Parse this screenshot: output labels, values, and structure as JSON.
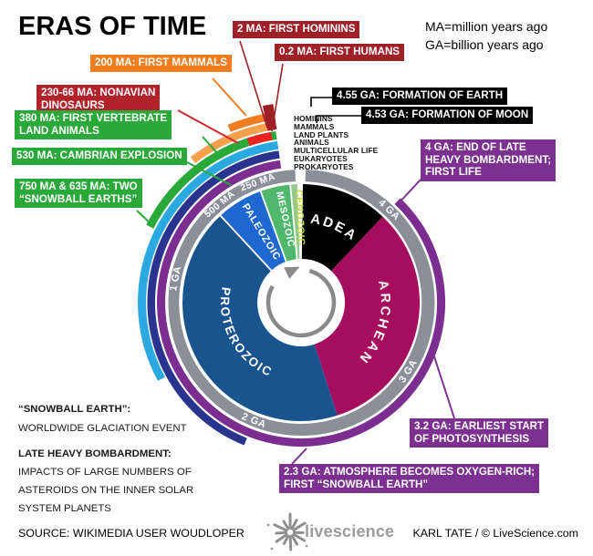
{
  "title": "ERAS OF TIME",
  "legend": {
    "line1": "MA=million years ago",
    "line2": "GA=billion years ago"
  },
  "callouts": {
    "hominins": {
      "lines": [
        "2 MA: FIRST HOMININS"
      ],
      "color": "darkred"
    },
    "humans": {
      "lines": [
        "0.2 MA: FIRST HUMANS"
      ],
      "color": "darkred"
    },
    "mammals": {
      "lines": [
        "200 MA: FIRST MAMMALS"
      ],
      "color": "orange"
    },
    "dinosaurs": {
      "lines": [
        "230-66 MA: NONAVIAN",
        "DINOSAURS"
      ],
      "color": "red"
    },
    "vertebrates": {
      "lines": [
        "380 MA: FIRST VERTEBRATE",
        "LAND ANIMALS"
      ],
      "color": "green"
    },
    "cambrian": {
      "lines": [
        "530 MA: CAMBRIAN EXPLOSION"
      ],
      "color": "green"
    },
    "snowball750": {
      "lines": [
        "750 MA & 635 MA: TWO",
        "“SNOWBALL EARTHS”"
      ],
      "color": "green"
    },
    "earth": {
      "lines": [
        "4.55 GA: FORMATION OF EARTH"
      ],
      "color": "black"
    },
    "moon": {
      "lines": [
        "4.53 GA: FORMATION OF MOON"
      ],
      "color": "black"
    },
    "bombardment": {
      "lines": [
        "4 GA: END OF LATE",
        "HEAVY BOMBARDMENT;",
        "FIRST LIFE"
      ],
      "color": "purple"
    },
    "photosynthesis": {
      "lines": [
        "3.2 GA: EARLIEST START",
        "OF PHOTOSYNTHESIS"
      ],
      "color": "purple"
    },
    "oxygen": {
      "lines": [
        "2.3 GA: ATMOSPHERE BECOMES OXYGEN-RICH;",
        "FIRST “SNOWBALL EARTH”"
      ],
      "color": "purple"
    }
  },
  "arc_labels": [
    "HOMININS",
    "MAMMALS",
    "LAND PLANTS",
    "ANIMALS",
    "MULTICELLULAR LIFE",
    "EUKARYOTES",
    "PROKARYOTES"
  ],
  "notes": {
    "snowball_head": "“SNOWBALL EARTH”:",
    "snowball_body": "WORLDWIDE GLACIATION EVENT",
    "lhb_head": "LATE HEAVY BOMBARDMENT:",
    "lhb_body": [
      "IMPACTS OF LARGE NUMBERS OF",
      "ASTEROIDS ON THE INNER SOLAR",
      "SYSTEM PLANETS"
    ]
  },
  "footer": {
    "source": "SOURCE: WIKIMEDIA USER  WOUDLOPER",
    "logo_text": "livescience",
    "credit": "KARL TATE / © LiveScience.com"
  },
  "chart_data": {
    "type": "radial-timeline",
    "title": "ERAS OF TIME",
    "total_ga": 4.55,
    "direction": "clockwise-from-top",
    "eras": [
      {
        "name": "HADEAN",
        "start_ga": 4.55,
        "end_ga": 4.0,
        "color": "#000000"
      },
      {
        "name": "ARCHEAN",
        "start_ga": 4.0,
        "end_ga": 2.5,
        "color": "#a50d5f"
      },
      {
        "name": "PROTEROZOIC",
        "start_ga": 2.5,
        "end_ga": 0.541,
        "color": "#1a548e"
      },
      {
        "name": "PALEOZOIC",
        "start_ga": 0.541,
        "end_ga": 0.252,
        "color": "#1e68d0"
      },
      {
        "name": "MESOZOIC",
        "start_ga": 0.252,
        "end_ga": 0.066,
        "color": "#50b86d"
      },
      {
        "name": "CENOZOIC",
        "start_ga": 0.066,
        "end_ga": 0,
        "color": "#96ca8c",
        "label_color": "#c6db44"
      }
    ],
    "ring_ticks": [
      {
        "label": "4 GA",
        "age_ga": 4.0
      },
      {
        "label": "3 GA",
        "age_ga": 3.0
      },
      {
        "label": "2 GA",
        "age_ga": 2.0
      },
      {
        "label": "1 GA",
        "age_ga": 1.0
      },
      {
        "label": "500 MA",
        "age_ga": 0.5
      },
      {
        "label": "250 MA",
        "age_ga": 0.25
      }
    ],
    "ring_color": "#8b8f98",
    "life_arcs": [
      {
        "name": "PROKARYOTES",
        "start_ga": 4.0,
        "end_ga": 0,
        "color": "#7b2d90"
      },
      {
        "name": "EUKARYOTES",
        "start_ga": 2.0,
        "end_ga": 0,
        "color": "#28348d"
      },
      {
        "name": "MULTICELLULAR LIFE",
        "start_ga": 1.5,
        "end_ga": 0,
        "color": "#2aa9e1"
      },
      {
        "name": "ANIMALS",
        "start_ga": 0.8,
        "end_ga": 0,
        "color": "#2aa83a"
      },
      {
        "name": "LAND PLANTS",
        "start_ga": 0.47,
        "end_ga": 0,
        "color": "#f5a04c"
      },
      {
        "name": "MAMMALS",
        "start_ga": 0.2,
        "end_ga": 0,
        "color": "#ef7d22"
      },
      {
        "name": "NONAVIAN DINOSAURS",
        "start_ga": 0.23,
        "end_ga": 0.066,
        "color": "#e8231f",
        "overlay_on": "ANIMALS"
      },
      {
        "name": "HOMININS",
        "start_ga": 0.002,
        "end_ga": 0,
        "color": "#9e2127",
        "style": "tick"
      }
    ],
    "center_arrow_color": "#8a8a8a"
  }
}
